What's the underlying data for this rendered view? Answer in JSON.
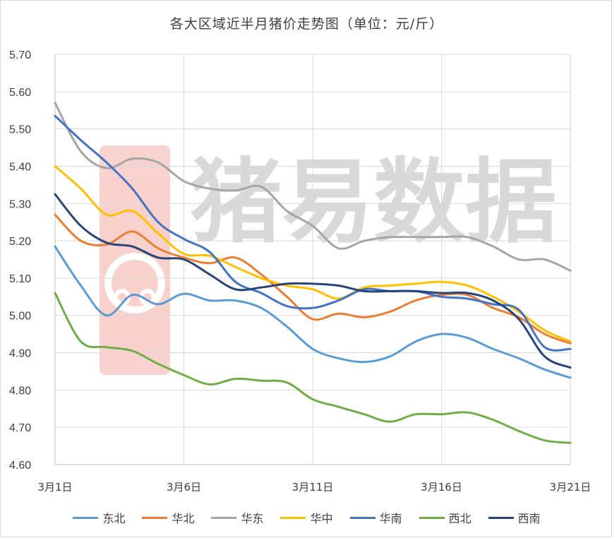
{
  "chart_data": {
    "type": "line",
    "title": "各大区域近半月猪价走势图（单位：元/斤）",
    "xlabel": "",
    "ylabel": "",
    "x": [
      "3月1日",
      "3月2日",
      "3月3日",
      "3月4日",
      "3月5日",
      "3月6日",
      "3月7日",
      "3月8日",
      "3月9日",
      "3月10日",
      "3月11日",
      "3月12日",
      "3月13日",
      "3月14日",
      "3月15日",
      "3月16日",
      "3月17日",
      "3月18日",
      "3月19日",
      "3月20日",
      "3月21日"
    ],
    "x_tick_labels": [
      "3月1日",
      "3月6日",
      "3月11日",
      "3月16日",
      "3月21日"
    ],
    "ylim": [
      4.6,
      5.7
    ],
    "y_tick_labels": [
      "5.70",
      "5.60",
      "5.50",
      "5.40",
      "5.30",
      "5.20",
      "5.10",
      "5.00",
      "4.90",
      "4.80",
      "4.70",
      "4.60"
    ],
    "grid": true,
    "legend_position": "bottom",
    "series": [
      {
        "name": "东北",
        "color": "#5B9BD5",
        "values": [
          5.185,
          5.08,
          5.0,
          5.055,
          5.03,
          5.058,
          5.04,
          5.04,
          5.02,
          4.97,
          4.91,
          4.885,
          4.875,
          4.89,
          4.93,
          4.95,
          4.94,
          4.91,
          4.885,
          4.855,
          4.833
        ]
      },
      {
        "name": "华北",
        "color": "#ED7D31",
        "values": [
          5.27,
          5.2,
          5.19,
          5.225,
          5.18,
          5.155,
          5.14,
          5.155,
          5.11,
          5.05,
          4.99,
          5.005,
          4.995,
          5.01,
          5.04,
          5.055,
          5.055,
          5.02,
          4.995,
          4.95,
          4.925
        ]
      },
      {
        "name": "华东",
        "color": "#A5A5A5",
        "values": [
          5.57,
          5.44,
          5.395,
          5.42,
          5.41,
          5.36,
          5.34,
          5.335,
          5.345,
          5.28,
          5.24,
          5.18,
          5.2,
          5.21,
          5.21,
          5.21,
          5.21,
          5.185,
          5.15,
          5.15,
          5.12
        ]
      },
      {
        "name": "华中",
        "color": "#FFC000",
        "values": [
          5.4,
          5.34,
          5.27,
          5.28,
          5.22,
          5.165,
          5.16,
          5.13,
          5.1,
          5.08,
          5.07,
          5.045,
          5.075,
          5.08,
          5.085,
          5.09,
          5.08,
          5.05,
          5.01,
          4.96,
          4.93
        ]
      },
      {
        "name": "华南",
        "color": "#4472C4",
        "values": [
          5.535,
          5.47,
          5.41,
          5.34,
          5.25,
          5.205,
          5.17,
          5.09,
          5.06,
          5.025,
          5.02,
          5.04,
          5.07,
          5.065,
          5.065,
          5.05,
          5.045,
          5.03,
          5.015,
          4.915,
          4.91
        ]
      },
      {
        "name": "西北",
        "color": "#70AD47",
        "values": [
          5.06,
          4.93,
          4.915,
          4.905,
          4.87,
          4.84,
          4.815,
          4.83,
          4.825,
          4.82,
          4.775,
          4.755,
          4.735,
          4.715,
          4.735,
          4.735,
          4.74,
          4.72,
          4.69,
          4.665,
          4.658
        ]
      },
      {
        "name": "西南",
        "color": "#264478",
        "values": [
          5.325,
          5.24,
          5.195,
          5.185,
          5.155,
          5.15,
          5.11,
          5.07,
          5.075,
          5.085,
          5.085,
          5.08,
          5.065,
          5.065,
          5.065,
          5.06,
          5.06,
          5.04,
          4.99,
          4.89,
          4.86
        ]
      }
    ]
  }
}
